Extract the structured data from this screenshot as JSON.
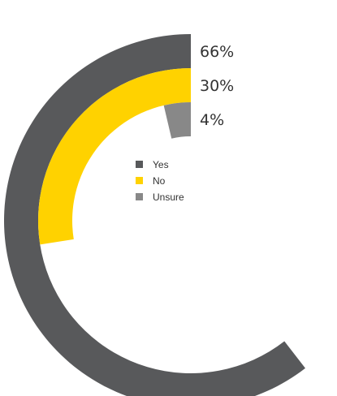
{
  "chart_data": {
    "type": "radial_bar",
    "series": [
      {
        "name": "Yes",
        "value": 66,
        "label": "66%",
        "color": "#58595b"
      },
      {
        "name": "No",
        "value": 30,
        "label": "30%",
        "color": "#ffd200"
      },
      {
        "name": "Unsure",
        "value": 4,
        "label": "4%",
        "color": "#888888"
      }
    ],
    "legend_position": "center",
    "max_value": 100
  }
}
